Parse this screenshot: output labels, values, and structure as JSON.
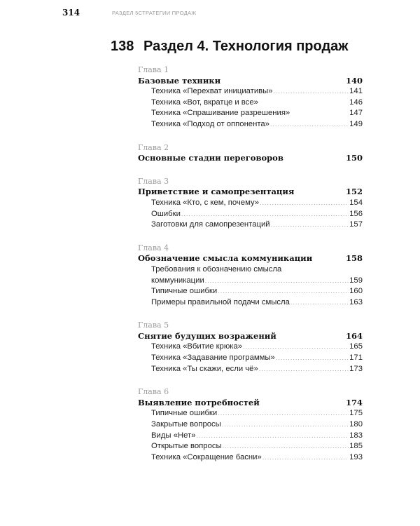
{
  "page_number": "314",
  "running_header": "РАЗДЕЛ 5СТРАТЕГИИ ПРОДАЖ",
  "section": {
    "page": "138",
    "title": "Раздел 4.  Технология продаж"
  },
  "chapters": [
    {
      "label": "Глава 1",
      "title": "Базовые техники",
      "page": "140",
      "items": [
        {
          "text": "Техника «Перехват инициативы»",
          "page": "141",
          "dots": true
        },
        {
          "text": "Техника «Вот, вкратце и все»",
          "page": "146",
          "dots": false
        },
        {
          "text": "Техника «Спрашивание разрешения»",
          "page": "147",
          "dots": false
        },
        {
          "text": "Техника  «Подход от оппонента»",
          "page": "149",
          "dots": true
        }
      ]
    },
    {
      "label": "Глава 2",
      "title": "Основные стадии переговоров",
      "page": "150",
      "items": []
    },
    {
      "label": "Глава 3",
      "title": "Приветствие и самопрезентация",
      "page": "152",
      "items": [
        {
          "text": "Техника «Кто, с кем, почему»",
          "page": "154",
          "dots": true
        },
        {
          "text": "Ошибки",
          "page": "156",
          "dots": true
        },
        {
          "text": "Заготовки для самопрезентаций",
          "page": "157",
          "dots": true
        }
      ]
    },
    {
      "label": "Глава 4",
      "title": "Обозначение смысла коммуникации",
      "page": "158",
      "items": [
        {
          "text": "Требования к обозначению смысла",
          "page": "",
          "dots": false
        },
        {
          "text": "коммуникации",
          "page": "159",
          "dots": true
        },
        {
          "text": "Типичные ошибки",
          "page": "160",
          "dots": true
        },
        {
          "text": "Примеры правильной подачи смысла",
          "page": "163",
          "dots": true
        }
      ]
    },
    {
      "label": "Глава 5",
      "title": "Снятие будущих возражений",
      "page": "164",
      "items": [
        {
          "text": "Техника «Вбитие крюка»",
          "page": "165",
          "dots": true
        },
        {
          "text": "Техника «Задавание программы»",
          "page": "171",
          "dots": true
        },
        {
          "text": "Техника «Ты скажи, если чё»",
          "page": "173",
          "dots": true
        }
      ]
    },
    {
      "label": "Глава 6",
      "title": "Выявление потребностей",
      "page": "174",
      "items": [
        {
          "text": "Типичные ошибки",
          "page": "175",
          "dots": true
        },
        {
          "text": "Закрытые вопросы",
          "page": "180",
          "dots": true
        },
        {
          "text": "Виды «Нет»",
          "page": "183",
          "dots": true
        },
        {
          "text": "Открытые вопросы",
          "page": "185",
          "dots": true
        },
        {
          "text": "Техника «Сокращение басни»",
          "page": "193",
          "dots": true
        }
      ]
    }
  ]
}
